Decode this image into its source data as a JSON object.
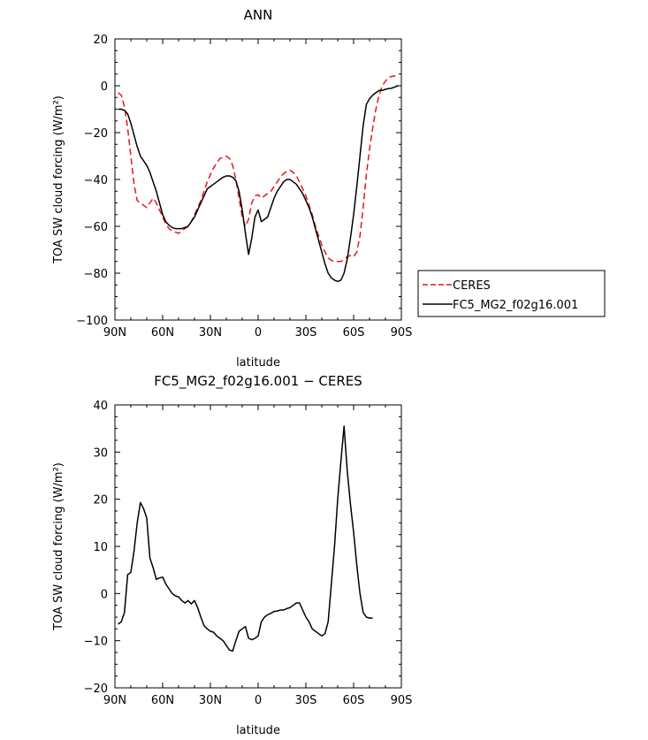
{
  "chart_data": [
    {
      "type": "line",
      "title": "ANN",
      "xlabel": "latitude",
      "ylabel": "TOA SW cloud forcing (W/m²)",
      "xlim": [
        90,
        -90
      ],
      "ylim": [
        -100,
        20
      ],
      "xticks": [
        90,
        60,
        30,
        0,
        -30,
        -60,
        -90
      ],
      "xtick_labels": [
        "90N",
        "60N",
        "30N",
        "0",
        "30S",
        "60S",
        "90S"
      ],
      "yticks": [
        -100,
        -80,
        -60,
        -40,
        -20,
        0,
        20
      ],
      "ytick_labels": [
        "−100",
        "−80",
        "−60",
        "−40",
        "−20",
        "0",
        "20"
      ],
      "legend": {
        "placement": "right",
        "entries": [
          "CERES",
          "FC5_MG2_f02g16.001"
        ]
      },
      "series": [
        {
          "name": "CERES",
          "color": "#e8141c",
          "dash": "dashed",
          "points": [
            [
              88,
              -3
            ],
            [
              86,
              -4
            ],
            [
              84,
              -9
            ],
            [
              82,
              -18
            ],
            [
              80,
              -30
            ],
            [
              78,
              -42
            ],
            [
              76,
              -49
            ],
            [
              74,
              -50
            ],
            [
              72,
              -51
            ],
            [
              70,
              -52
            ],
            [
              68,
              -50
            ],
            [
              66,
              -48
            ],
            [
              64,
              -50
            ],
            [
              62,
              -53
            ],
            [
              60,
              -56
            ],
            [
              58,
              -59
            ],
            [
              56,
              -61
            ],
            [
              54,
              -62
            ],
            [
              52,
              -62.5
            ],
            [
              50,
              -63
            ],
            [
              48,
              -62
            ],
            [
              46,
              -61
            ],
            [
              44,
              -60
            ],
            [
              42,
              -58
            ],
            [
              40,
              -55
            ],
            [
              38,
              -52
            ],
            [
              36,
              -49
            ],
            [
              34,
              -45
            ],
            [
              32,
              -41
            ],
            [
              30,
              -38
            ],
            [
              28,
              -35
            ],
            [
              26,
              -33
            ],
            [
              24,
              -31
            ],
            [
              22,
              -30.5
            ],
            [
              20,
              -30
            ],
            [
              18,
              -31
            ],
            [
              16,
              -34
            ],
            [
              14,
              -40
            ],
            [
              12,
              -48
            ],
            [
              10,
              -56
            ],
            [
              8,
              -60
            ],
            [
              6,
              -57
            ],
            [
              4,
              -50
            ],
            [
              2,
              -47
            ],
            [
              0,
              -46.5
            ],
            [
              -2,
              -48
            ],
            [
              -4,
              -47
            ],
            [
              -6,
              -46
            ],
            [
              -8,
              -45
            ],
            [
              -10,
              -43
            ],
            [
              -12,
              -41
            ],
            [
              -14,
              -39
            ],
            [
              -16,
              -37.5
            ],
            [
              -18,
              -36.5
            ],
            [
              -20,
              -36
            ],
            [
              -22,
              -37
            ],
            [
              -24,
              -38.5
            ],
            [
              -26,
              -41
            ],
            [
              -28,
              -44
            ],
            [
              -30,
              -47
            ],
            [
              -32,
              -51
            ],
            [
              -34,
              -55
            ],
            [
              -36,
              -60
            ],
            [
              -38,
              -64
            ],
            [
              -40,
              -68
            ],
            [
              -42,
              -71
            ],
            [
              -44,
              -73.5
            ],
            [
              -46,
              -74.5
            ],
            [
              -48,
              -75
            ],
            [
              -50,
              -75
            ],
            [
              -52,
              -75
            ],
            [
              -54,
              -74
            ],
            [
              -56,
              -73
            ],
            [
              -58,
              -72.5
            ],
            [
              -60,
              -73
            ],
            [
              -62,
              -71
            ],
            [
              -64,
              -64
            ],
            [
              -66,
              -52
            ],
            [
              -68,
              -38
            ],
            [
              -70,
              -27
            ],
            [
              -72,
              -18
            ],
            [
              -74,
              -10
            ],
            [
              -76,
              -4
            ],
            [
              -78,
              0
            ],
            [
              -80,
              2
            ],
            [
              -82,
              3.5
            ],
            [
              -84,
              4
            ],
            [
              -86,
              4.2
            ],
            [
              -88,
              4.3
            ]
          ]
        },
        {
          "name": "FC5_MG2_f02g16.001",
          "color": "#000000",
          "dash": "solid",
          "points": [
            [
              88,
              -10
            ],
            [
              86,
              -10
            ],
            [
              84,
              -10.5
            ],
            [
              82,
              -12
            ],
            [
              80,
              -16
            ],
            [
              78,
              -21
            ],
            [
              76,
              -26
            ],
            [
              74,
              -30
            ],
            [
              72,
              -32
            ],
            [
              70,
              -34
            ],
            [
              68,
              -37
            ],
            [
              66,
              -41
            ],
            [
              64,
              -45
            ],
            [
              62,
              -50
            ],
            [
              60,
              -55
            ],
            [
              58,
              -58
            ],
            [
              56,
              -59.5
            ],
            [
              54,
              -60.5
            ],
            [
              52,
              -61
            ],
            [
              50,
              -61
            ],
            [
              48,
              -61
            ],
            [
              46,
              -60.5
            ],
            [
              44,
              -60
            ],
            [
              42,
              -58
            ],
            [
              40,
              -56
            ],
            [
              38,
              -53
            ],
            [
              36,
              -50
            ],
            [
              34,
              -47
            ],
            [
              32,
              -44
            ],
            [
              30,
              -43
            ],
            [
              28,
              -42
            ],
            [
              26,
              -41
            ],
            [
              24,
              -40
            ],
            [
              22,
              -39
            ],
            [
              20,
              -38.5
            ],
            [
              18,
              -38.5
            ],
            [
              16,
              -39
            ],
            [
              14,
              -40.5
            ],
            [
              12,
              -45
            ],
            [
              10,
              -53
            ],
            [
              8,
              -63
            ],
            [
              6,
              -72
            ],
            [
              4,
              -65
            ],
            [
              2,
              -56
            ],
            [
              0,
              -53
            ],
            [
              -2,
              -58
            ],
            [
              -4,
              -57
            ],
            [
              -6,
              -56
            ],
            [
              -8,
              -52
            ],
            [
              -10,
              -48
            ],
            [
              -12,
              -45
            ],
            [
              -14,
              -43
            ],
            [
              -16,
              -41
            ],
            [
              -18,
              -40
            ],
            [
              -20,
              -40
            ],
            [
              -22,
              -41
            ],
            [
              -24,
              -42
            ],
            [
              -26,
              -44
            ],
            [
              -28,
              -46
            ],
            [
              -30,
              -49
            ],
            [
              -32,
              -52
            ],
            [
              -34,
              -56
            ],
            [
              -36,
              -61
            ],
            [
              -38,
              -66
            ],
            [
              -40,
              -71
            ],
            [
              -42,
              -76
            ],
            [
              -44,
              -80
            ],
            [
              -46,
              -82
            ],
            [
              -48,
              -83
            ],
            [
              -50,
              -83.5
            ],
            [
              -52,
              -83
            ],
            [
              -54,
              -80
            ],
            [
              -56,
              -74
            ],
            [
              -58,
              -65
            ],
            [
              -60,
              -55
            ],
            [
              -62,
              -43
            ],
            [
              -64,
              -30
            ],
            [
              -66,
              -17
            ],
            [
              -68,
              -8
            ],
            [
              -70,
              -5.5
            ],
            [
              -72,
              -4
            ],
            [
              -74,
              -3
            ],
            [
              -76,
              -2
            ],
            [
              -78,
              -2
            ],
            [
              -80,
              -1.5
            ],
            [
              -82,
              -1.2
            ],
            [
              -84,
              -1
            ],
            [
              -86,
              -0.5
            ],
            [
              -88,
              0
            ]
          ]
        }
      ]
    },
    {
      "type": "line",
      "title": "FC5_MG2_f02g16.001 − CERES",
      "xlabel": "latitude",
      "ylabel": "TOA SW cloud forcing (W/m²)",
      "xlim": [
        90,
        -90
      ],
      "ylim": [
        -20,
        40
      ],
      "xticks": [
        90,
        60,
        30,
        0,
        -30,
        -60,
        -90
      ],
      "xtick_labels": [
        "90N",
        "60N",
        "30N",
        "0",
        "30S",
        "60S",
        "90S"
      ],
      "yticks": [
        -20,
        -10,
        0,
        10,
        20,
        30,
        40
      ],
      "ytick_labels": [
        "−20",
        "−10",
        "0",
        "10",
        "20",
        "30",
        "40"
      ],
      "series": [
        {
          "color": "#000000",
          "dash": "solid",
          "points": [
            [
              88,
              -6.5
            ],
            [
              86,
              -6
            ],
            [
              84,
              -4
            ],
            [
              82,
              4
            ],
            [
              80,
              4.5
            ],
            [
              78,
              9
            ],
            [
              76,
              15
            ],
            [
              74,
              19.3
            ],
            [
              72,
              18
            ],
            [
              70,
              16
            ],
            [
              68,
              7.5
            ],
            [
              66,
              5.5
            ],
            [
              64,
              3
            ],
            [
              62,
              3.3
            ],
            [
              60,
              3.5
            ],
            [
              58,
              2
            ],
            [
              56,
              1
            ],
            [
              54,
              0
            ],
            [
              52,
              -0.5
            ],
            [
              50,
              -0.7
            ],
            [
              48,
              -1.5
            ],
            [
              46,
              -2
            ],
            [
              44,
              -1.5
            ],
            [
              42,
              -2.2
            ],
            [
              40,
              -1.5
            ],
            [
              38,
              -3
            ],
            [
              36,
              -5
            ],
            [
              34,
              -6.8
            ],
            [
              32,
              -7.5
            ],
            [
              30,
              -8
            ],
            [
              28,
              -8.2
            ],
            [
              26,
              -9
            ],
            [
              24,
              -9.5
            ],
            [
              22,
              -10
            ],
            [
              20,
              -11
            ],
            [
              18,
              -12
            ],
            [
              16,
              -12.2
            ],
            [
              14,
              -10
            ],
            [
              12,
              -8
            ],
            [
              10,
              -7.5
            ],
            [
              8,
              -7
            ],
            [
              6,
              -9.5
            ],
            [
              4,
              -9.8
            ],
            [
              2,
              -9.5
            ],
            [
              0,
              -9
            ],
            [
              -2,
              -6
            ],
            [
              -4,
              -5
            ],
            [
              -6,
              -4.5
            ],
            [
              -8,
              -4.2
            ],
            [
              -10,
              -3.8
            ],
            [
              -12,
              -3.7
            ],
            [
              -14,
              -3.5
            ],
            [
              -16,
              -3.5
            ],
            [
              -18,
              -3.2
            ],
            [
              -20,
              -3
            ],
            [
              -22,
              -2.5
            ],
            [
              -24,
              -2
            ],
            [
              -26,
              -2
            ],
            [
              -28,
              -3.5
            ],
            [
              -30,
              -5
            ],
            [
              -32,
              -6
            ],
            [
              -34,
              -7.5
            ],
            [
              -36,
              -8
            ],
            [
              -38,
              -8.5
            ],
            [
              -40,
              -9
            ],
            [
              -42,
              -8.5
            ],
            [
              -44,
              -6
            ],
            [
              -46,
              2
            ],
            [
              -48,
              10
            ],
            [
              -50,
              20
            ],
            [
              -52,
              28
            ],
            [
              -54,
              35.5
            ],
            [
              -56,
              26
            ],
            [
              -58,
              19
            ],
            [
              -60,
              13
            ],
            [
              -62,
              6
            ],
            [
              -64,
              0
            ],
            [
              -66,
              -4
            ],
            [
              -68,
              -5
            ],
            [
              -70,
              -5.2
            ],
            [
              -72,
              -5.2
            ]
          ]
        }
      ]
    }
  ]
}
